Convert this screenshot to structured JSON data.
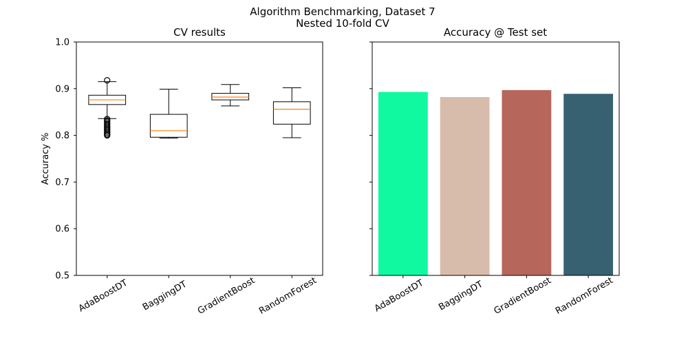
{
  "figure": {
    "suptitle_line1": "Algorithm Benchmarking, Dataset 7",
    "suptitle_line2": "Nested 10-fold CV"
  },
  "chart_data": [
    {
      "type": "box",
      "title": "CV results",
      "xlabel": "",
      "ylabel": "Accuracy %",
      "ylim": [
        0.5,
        1.0
      ],
      "yticks": [
        "0.5",
        "0.6",
        "0.7",
        "0.8",
        "0.9",
        "1.0"
      ],
      "categories": [
        "AdaBoostDT",
        "BaggingDT",
        "GradientBoost",
        "RandomForest"
      ],
      "boxes": [
        {
          "whisker_low": 0.836,
          "q1": 0.866,
          "median": 0.876,
          "q3": 0.886,
          "whisker_high": 0.915,
          "outliers": [
            0.918,
            0.835,
            0.832,
            0.829,
            0.826,
            0.823,
            0.82,
            0.817,
            0.814,
            0.811,
            0.808,
            0.805,
            0.802,
            0.8
          ]
        },
        {
          "whisker_low": 0.794,
          "q1": 0.796,
          "median": 0.81,
          "q3": 0.845,
          "whisker_high": 0.899,
          "outliers": []
        },
        {
          "whisker_low": 0.863,
          "q1": 0.876,
          "median": 0.882,
          "q3": 0.89,
          "whisker_high": 0.909,
          "outliers": []
        },
        {
          "whisker_low": 0.795,
          "q1": 0.824,
          "median": 0.856,
          "q3": 0.872,
          "whisker_high": 0.902,
          "outliers": []
        }
      ],
      "box_color": "#000000",
      "median_color": "#ff7f0e",
      "grid": false
    },
    {
      "type": "bar",
      "title": "Accuracy @ Test set",
      "xlabel": "",
      "ylabel": "",
      "ylim": [
        0.5,
        1.0
      ],
      "shared_y": true,
      "categories": [
        "AdaBoostDT",
        "BaggingDT",
        "GradientBoost",
        "RandomForest"
      ],
      "values": [
        0.893,
        0.882,
        0.897,
        0.889
      ],
      "colors": [
        "#10f9a0",
        "#d8bcab",
        "#b7665c",
        "#376170"
      ],
      "grid": false
    }
  ]
}
